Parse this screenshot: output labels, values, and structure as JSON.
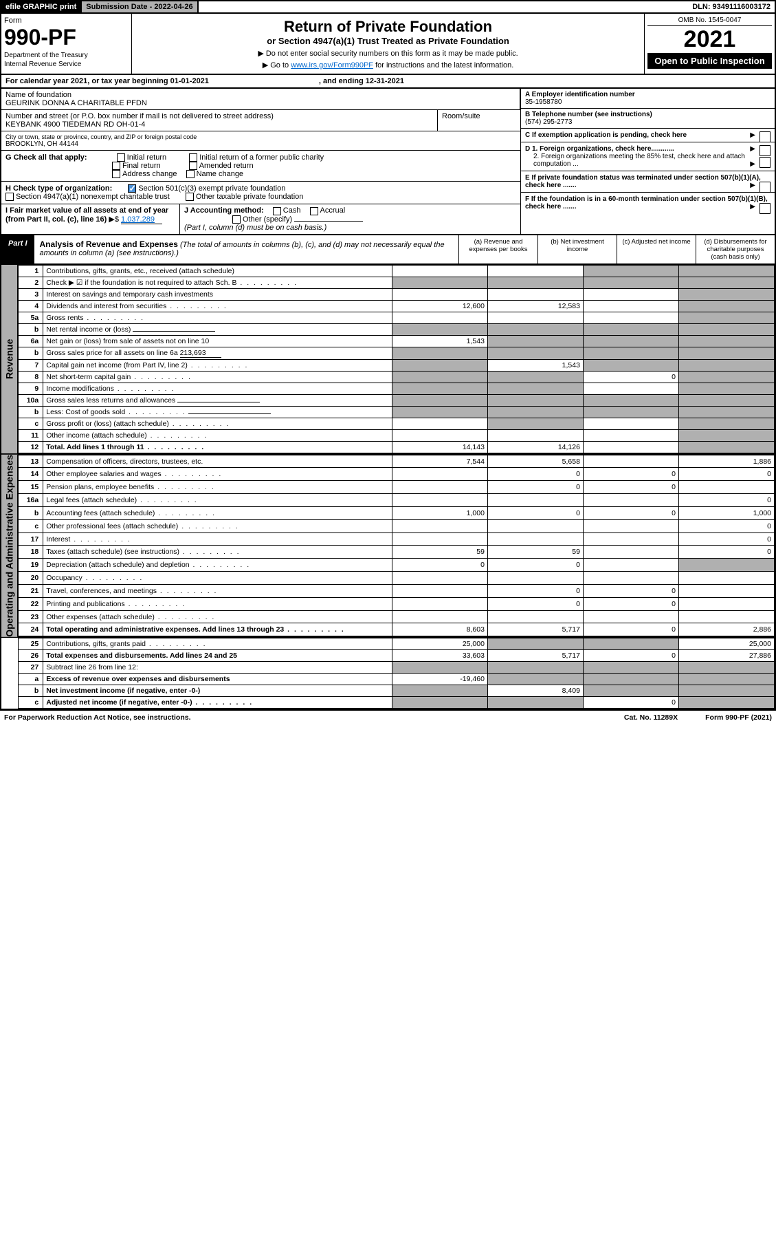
{
  "topbar": {
    "efile": "efile GRAPHIC print",
    "subdate_label": "Submission Date - 2022-04-26",
    "dln": "DLN: 93491116003172"
  },
  "header": {
    "form_label": "Form",
    "form_number": "990-PF",
    "dept": "Department of the Treasury",
    "irs": "Internal Revenue Service",
    "title": "Return of Private Foundation",
    "subtitle": "or Section 4947(a)(1) Trust Treated as Private Foundation",
    "note1": "▶ Do not enter social security numbers on this form as it may be made public.",
    "note2_pre": "▶ Go to ",
    "note2_link": "www.irs.gov/Form990PF",
    "note2_post": " for instructions and the latest information.",
    "omb": "OMB No. 1545-0047",
    "year": "2021",
    "open": "Open to Public Inspection"
  },
  "calyear": {
    "pre": "For calendar year 2021, or tax year beginning 01-01-2021",
    "mid": ", and ending 12-31-2021"
  },
  "info": {
    "name_lbl": "Name of foundation",
    "name": "GEURINK DONNA A CHARITABLE PFDN",
    "addr_lbl": "Number and street (or P.O. box number if mail is not delivered to street address)",
    "addr": "KEYBANK 4900 TIEDEMAN RD OH-01-4",
    "room_lbl": "Room/suite",
    "city_lbl": "City or town, state or province, country, and ZIP or foreign postal code",
    "city": "BROOKLYN, OH  44144",
    "a_lbl": "A Employer identification number",
    "a_val": "35-1958780",
    "b_lbl": "B Telephone number (see instructions)",
    "b_val": "(574) 295-2773",
    "c_lbl": "C If exemption application is pending, check here",
    "d1_lbl": "D 1. Foreign organizations, check here............",
    "d2_lbl": "2. Foreign organizations meeting the 85% test, check here and attach computation ...",
    "e_lbl": "E  If private foundation status was terminated under section 507(b)(1)(A), check here .......",
    "f_lbl": "F  If the foundation is in a 60-month termination under section 507(b)(1)(B), check here .......",
    "g_lbl": "G Check all that apply:",
    "g_opts": [
      "Initial return",
      "Initial return of a former public charity",
      "Final return",
      "Amended return",
      "Address change",
      "Name change"
    ],
    "h_lbl": "H Check type of organization:",
    "h1": "Section 501(c)(3) exempt private foundation",
    "h2": "Section 4947(a)(1) nonexempt charitable trust",
    "h3": "Other taxable private foundation",
    "i_lbl": "I Fair market value of all assets at end of year (from Part II, col. (c), line 16)",
    "i_val": "1,037,289",
    "j_lbl": "J Accounting method:",
    "j1": "Cash",
    "j2": "Accrual",
    "j3": "Other (specify)",
    "j_note": "(Part I, column (d) must be on cash basis.)"
  },
  "part1": {
    "tag": "Part I",
    "title": "Analysis of Revenue and Expenses",
    "note": "(The total of amounts in columns (b), (c), and (d) may not necessarily equal the amounts in column (a) (see instructions).)",
    "col_a": "(a)  Revenue and expenses per books",
    "col_b": "(b)  Net investment income",
    "col_c": "(c)  Adjusted net income",
    "col_d": "(d)  Disbursements for charitable purposes (cash basis only)"
  },
  "side_labels": {
    "rev": "Revenue",
    "exp": "Operating and Administrative Expenses"
  },
  "rows": [
    {
      "n": "1",
      "d": "Contributions, gifts, grants, etc., received (attach schedule)",
      "a": "",
      "b": "",
      "c": "s",
      "ds": "s"
    },
    {
      "n": "2",
      "d": "Check ▶ ☑ if the foundation is not required to attach Sch. B",
      "dot": true,
      "a": "s",
      "b": "s",
      "c": "s",
      "ds": "s"
    },
    {
      "n": "3",
      "d": "Interest on savings and temporary cash investments",
      "a": "",
      "b": "",
      "c": "",
      "ds": "s"
    },
    {
      "n": "4",
      "d": "Dividends and interest from securities",
      "dot": true,
      "a": "12,600",
      "b": "12,583",
      "c": "",
      "ds": "s"
    },
    {
      "n": "5a",
      "d": "Gross rents",
      "dot": true,
      "a": "",
      "b": "",
      "c": "",
      "ds": "s"
    },
    {
      "n": "b",
      "d": "Net rental income or (loss)",
      "under": true,
      "a": "s",
      "b": "s",
      "c": "s",
      "ds": "s"
    },
    {
      "n": "6a",
      "d": "Net gain or (loss) from sale of assets not on line 10",
      "a": "1,543",
      "b": "s",
      "c": "s",
      "ds": "s"
    },
    {
      "n": "b",
      "d": "Gross sales price for all assets on line 6a",
      "inline": "213,693",
      "a": "s",
      "b": "s",
      "c": "s",
      "ds": "s"
    },
    {
      "n": "7",
      "d": "Capital gain net income (from Part IV, line 2)",
      "dot": true,
      "a": "s",
      "b": "1,543",
      "c": "s",
      "ds": "s"
    },
    {
      "n": "8",
      "d": "Net short-term capital gain",
      "dot": true,
      "a": "s",
      "b": "s",
      "c": "0",
      "ds": "s"
    },
    {
      "n": "9",
      "d": "Income modifications",
      "dot": true,
      "a": "s",
      "b": "s",
      "c": "",
      "ds": "s"
    },
    {
      "n": "10a",
      "d": "Gross sales less returns and allowances",
      "under": true,
      "a": "s",
      "b": "s",
      "c": "s",
      "ds": "s"
    },
    {
      "n": "b",
      "d": "Less: Cost of goods sold",
      "dot": true,
      "under": true,
      "a": "s",
      "b": "s",
      "c": "s",
      "ds": "s"
    },
    {
      "n": "c",
      "d": "Gross profit or (loss) (attach schedule)",
      "dot": true,
      "a": "",
      "b": "s",
      "c": "",
      "ds": "s"
    },
    {
      "n": "11",
      "d": "Other income (attach schedule)",
      "dot": true,
      "a": "",
      "b": "",
      "c": "",
      "ds": "s"
    },
    {
      "n": "12",
      "d": "Total. Add lines 1 through 11",
      "dot": true,
      "bold": true,
      "a": "14,143",
      "b": "14,126",
      "c": "",
      "ds": "s"
    },
    {
      "n": "13",
      "d": "Compensation of officers, directors, trustees, etc.",
      "a": "7,544",
      "b": "5,658",
      "c": "",
      "ds": "1,886"
    },
    {
      "n": "14",
      "d": "Other employee salaries and wages",
      "dot": true,
      "a": "",
      "b": "0",
      "c": "0",
      "ds": "0"
    },
    {
      "n": "15",
      "d": "Pension plans, employee benefits",
      "dot": true,
      "a": "",
      "b": "0",
      "c": "0",
      "ds": ""
    },
    {
      "n": "16a",
      "d": "Legal fees (attach schedule)",
      "dot": true,
      "a": "",
      "b": "",
      "c": "",
      "ds": "0"
    },
    {
      "n": "b",
      "d": "Accounting fees (attach schedule)",
      "dot": true,
      "a": "1,000",
      "b": "0",
      "c": "0",
      "ds": "1,000"
    },
    {
      "n": "c",
      "d": "Other professional fees (attach schedule)",
      "dot": true,
      "a": "",
      "b": "",
      "c": "",
      "ds": "0"
    },
    {
      "n": "17",
      "d": "Interest",
      "dot": true,
      "a": "",
      "b": "",
      "c": "",
      "ds": "0"
    },
    {
      "n": "18",
      "d": "Taxes (attach schedule) (see instructions)",
      "dot": true,
      "a": "59",
      "b": "59",
      "c": "",
      "ds": "0"
    },
    {
      "n": "19",
      "d": "Depreciation (attach schedule) and depletion",
      "dot": true,
      "a": "0",
      "b": "0",
      "c": "",
      "ds": "s"
    },
    {
      "n": "20",
      "d": "Occupancy",
      "dot": true,
      "a": "",
      "b": "",
      "c": "",
      "ds": ""
    },
    {
      "n": "21",
      "d": "Travel, conferences, and meetings",
      "dot": true,
      "a": "",
      "b": "0",
      "c": "0",
      "ds": ""
    },
    {
      "n": "22",
      "d": "Printing and publications",
      "dot": true,
      "a": "",
      "b": "0",
      "c": "0",
      "ds": ""
    },
    {
      "n": "23",
      "d": "Other expenses (attach schedule)",
      "dot": true,
      "a": "",
      "b": "",
      "c": "",
      "ds": ""
    },
    {
      "n": "24",
      "d": "Total operating and administrative expenses. Add lines 13 through 23",
      "dot": true,
      "bold": true,
      "a": "8,603",
      "b": "5,717",
      "c": "0",
      "ds": "2,886"
    },
    {
      "n": "25",
      "d": "Contributions, gifts, grants paid",
      "dot": true,
      "a": "25,000",
      "b": "s",
      "c": "s",
      "ds": "25,000"
    },
    {
      "n": "26",
      "d": "Total expenses and disbursements. Add lines 24 and 25",
      "bold": true,
      "a": "33,603",
      "b": "5,717",
      "c": "0",
      "ds": "27,886"
    },
    {
      "n": "27",
      "d": "Subtract line 26 from line 12:",
      "a": "s",
      "b": "s",
      "c": "s",
      "ds": "s"
    },
    {
      "n": "a",
      "d": "Excess of revenue over expenses and disbursements",
      "bold": true,
      "a": "-19,460",
      "b": "s",
      "c": "s",
      "ds": "s"
    },
    {
      "n": "b",
      "d": "Net investment income (if negative, enter -0-)",
      "bold": true,
      "a": "s",
      "b": "8,409",
      "c": "s",
      "ds": "s"
    },
    {
      "n": "c",
      "d": "Adjusted net income (if negative, enter -0-)",
      "dot": true,
      "bold": true,
      "a": "s",
      "b": "s",
      "c": "0",
      "ds": "s"
    }
  ],
  "footer": {
    "left": "For Paperwork Reduction Act Notice, see instructions.",
    "mid": "Cat. No. 11289X",
    "right": "Form 990-PF (2021)"
  }
}
